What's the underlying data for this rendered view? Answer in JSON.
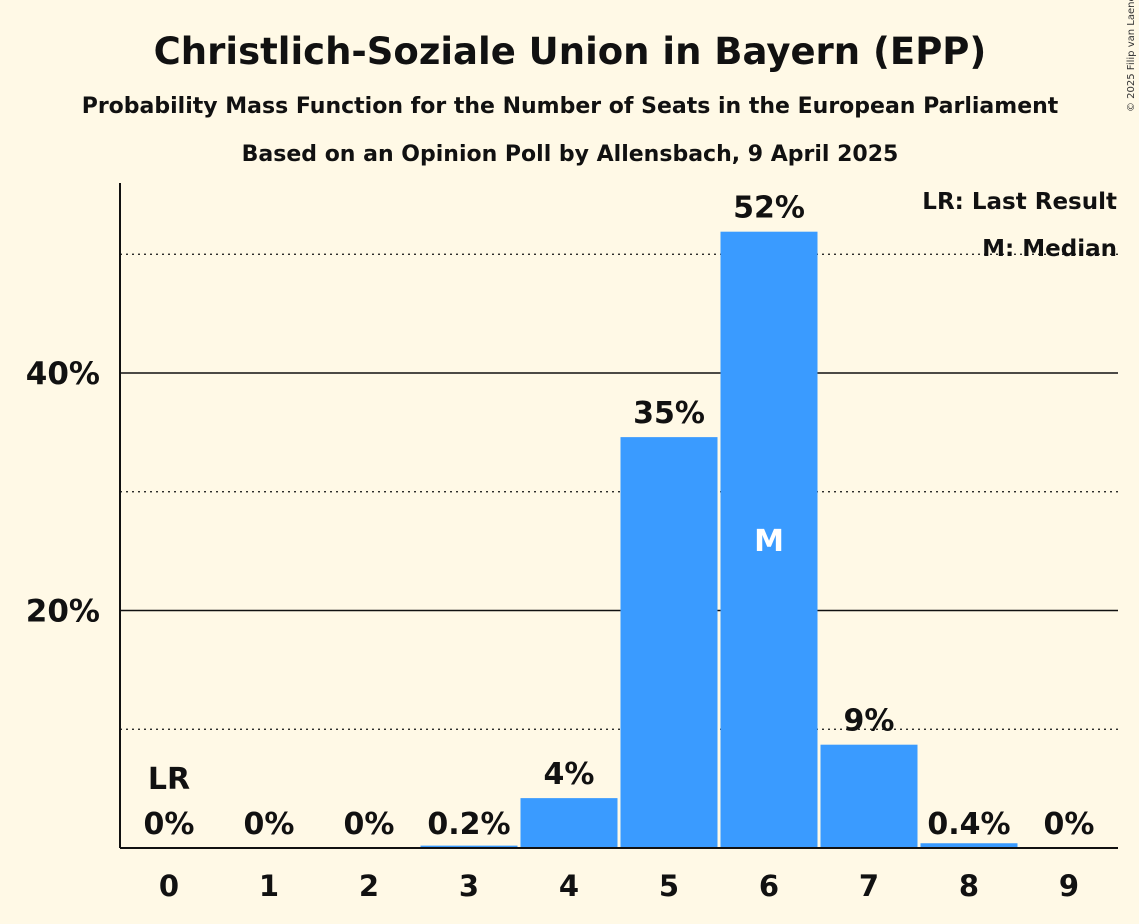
{
  "chart_data": {
    "type": "bar",
    "title": "Christlich-Soziale Union in Bayern (EPP)",
    "subtitle": "Probability Mass Function for the Number of Seats in the European Parliament",
    "subtitle2": "Based on an Opinion Poll by Allensbach, 9 April 2025",
    "categories": [
      "0",
      "1",
      "2",
      "3",
      "4",
      "5",
      "6",
      "7",
      "8",
      "9"
    ],
    "values": [
      0,
      0,
      0,
      0.2,
      4.2,
      34.6,
      51.9,
      8.7,
      0.4,
      0
    ],
    "value_labels": [
      "0%",
      "0%",
      "0%",
      "0.2%",
      "4%",
      "35%",
      "52%",
      "9%",
      "0.4%",
      "0%"
    ],
    "ylim": [
      0,
      56
    ],
    "yticks": [
      {
        "value": 20,
        "label": "20%"
      },
      {
        "value": 40,
        "label": "40%"
      }
    ],
    "minor_gridlines": [
      10,
      30,
      50
    ],
    "bar_color": "#3a9bff",
    "last_result_index": 0,
    "last_result_marker": "LR",
    "median_index": 6,
    "median_marker": "M",
    "legend": [
      "LR: Last Result",
      "M: Median"
    ],
    "legend_position": "top-right",
    "xlabel": "",
    "ylabel": ""
  },
  "copyright": "© 2025 Filip van Laenen"
}
